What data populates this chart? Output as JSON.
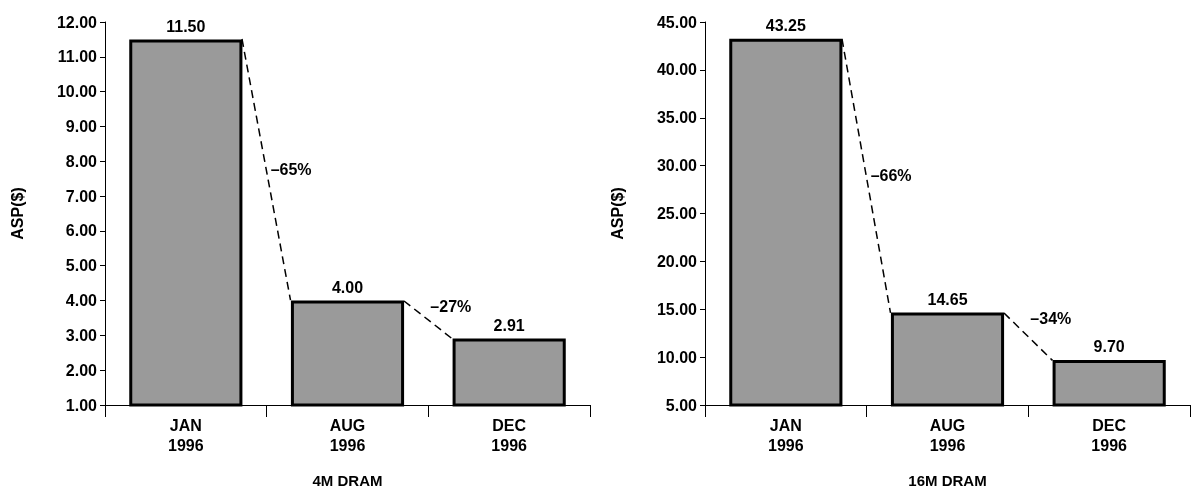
{
  "chart_data": [
    {
      "type": "bar",
      "xlabel": "4M DRAM",
      "ylabel": "ASP($)",
      "categories": [
        "JAN\n1996",
        "AUG\n1996",
        "DEC\n1996"
      ],
      "values": [
        11.5,
        4.0,
        2.91
      ],
      "value_labels": [
        "11.50",
        "4.00",
        "2.91"
      ],
      "color": "#9a9a9a",
      "ylim": [
        1,
        12
      ],
      "yticks": [
        {
          "value": 1,
          "label": "1.00"
        },
        {
          "value": 2,
          "label": "2.00"
        },
        {
          "value": 3,
          "label": "3.00"
        },
        {
          "value": 4,
          "label": "4.00"
        },
        {
          "value": 5,
          "label": "5.00"
        },
        {
          "value": 6,
          "label": "6.00"
        },
        {
          "value": 7,
          "label": "7.00"
        },
        {
          "value": 8,
          "label": "8.00"
        },
        {
          "value": 9,
          "label": "9.00"
        },
        {
          "value": 10,
          "label": "10.00"
        },
        {
          "value": 11,
          "label": "11.00"
        },
        {
          "value": 12,
          "label": "12.00"
        }
      ],
      "annotations": [
        "–65%",
        "–27%"
      ],
      "grid": false
    },
    {
      "type": "bar",
      "xlabel": "16M DRAM",
      "ylabel": "ASP($)",
      "categories": [
        "JAN\n1996",
        "AUG\n1996",
        "DEC\n1996"
      ],
      "values": [
        43.25,
        14.65,
        9.7
      ],
      "value_labels": [
        "43.25",
        "14.65",
        "9.70"
      ],
      "color": "#9a9a9a",
      "ylim": [
        5,
        45
      ],
      "yticks": [
        {
          "value": 5,
          "label": "5.00"
        },
        {
          "value": 10,
          "label": "10.00"
        },
        {
          "value": 15,
          "label": "15.00"
        },
        {
          "value": 20,
          "label": "20.00"
        },
        {
          "value": 25,
          "label": "25.00"
        },
        {
          "value": 30,
          "label": "30.00"
        },
        {
          "value": 35,
          "label": "35.00"
        },
        {
          "value": 40,
          "label": "40.00"
        },
        {
          "value": 45,
          "label": "45.00"
        }
      ],
      "annotations": [
        "–66%",
        "–34%"
      ],
      "grid": false
    }
  ]
}
